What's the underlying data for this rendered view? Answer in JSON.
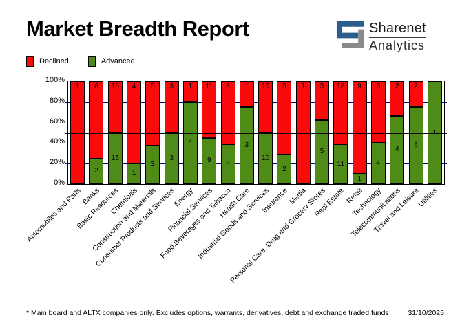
{
  "header": {
    "title": "Market Breadth Report",
    "logo": {
      "line1": "Sharenet",
      "line2": "Analytics",
      "blue": "#2b5d8c",
      "gray": "#8a8a8a"
    }
  },
  "legend": {
    "items": [
      {
        "label": "Declined",
        "color": "#f90b0b"
      },
      {
        "label": "Advanced",
        "color": "#4e8b17"
      }
    ]
  },
  "chart_data": {
    "type": "bar",
    "stacked": true,
    "normalized": "percent",
    "title": "Market Breadth Report",
    "categories": [
      "Automobiles and Parts",
      "Banks",
      "Basic Resources",
      "Chemicals",
      "Construction and Materials",
      "Consumer Products and Services",
      "Energy",
      "Financial Services",
      "Food,Beverages and Tabacco",
      "Health Care",
      "Industrial Goods and Services",
      "Insurance",
      "Media",
      "Personal Care, Drug and Grocery Stores",
      "Real Estate",
      "Retail",
      "Technology",
      "Telecommunications",
      "Travel and Leisure",
      "Utilities"
    ],
    "series": [
      {
        "name": "Declined",
        "color": "#f90b0b",
        "values": [
          1,
          6,
          15,
          4,
          5,
          3,
          1,
          11,
          8,
          1,
          10,
          5,
          1,
          3,
          18,
          9,
          6,
          2,
          2,
          0
        ]
      },
      {
        "name": "Advanced",
        "color": "#4e8b17",
        "values": [
          0,
          2,
          15,
          1,
          3,
          3,
          4,
          9,
          5,
          3,
          10,
          2,
          0,
          5,
          11,
          1,
          4,
          4,
          6,
          1
        ]
      }
    ],
    "y_ticks": [
      "100%",
      "80%",
      "60%",
      "40%",
      "20%",
      "0%"
    ],
    "ylim": [
      0,
      100
    ],
    "gridlines": {
      "navy_at": [
        20,
        80
      ],
      "gray_at": [
        40,
        60
      ],
      "black_line_at": 50,
      "navy_color": "#000080",
      "gray_color": "#c9c9c9"
    },
    "legend_position": "top-left"
  },
  "footer": {
    "note": "* Main board and ALTX companies only. Excludes options, warrants, derivatives, debt and exchange traded funds",
    "date": "31/10/2025"
  }
}
